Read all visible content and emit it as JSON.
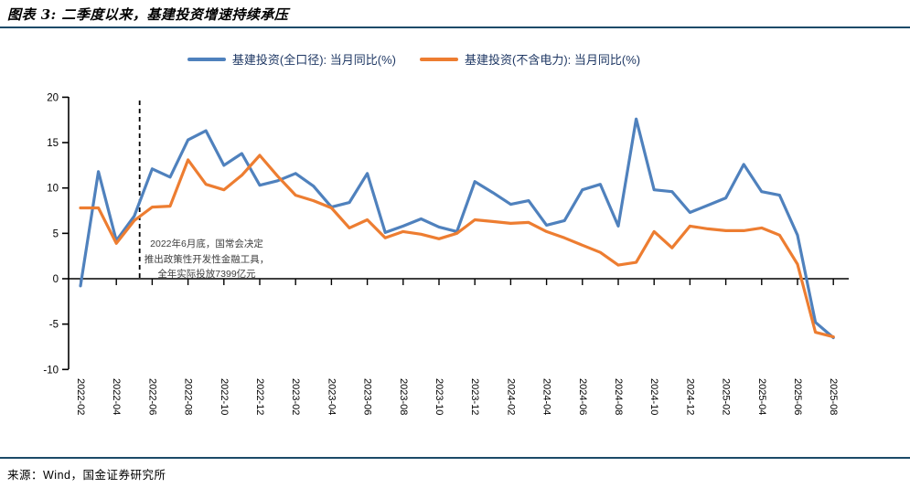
{
  "header": {
    "title": "图表 3: 二季度以来，基建投资增速持续承压"
  },
  "legend": [
    {
      "label": "基建投资(全口径): 当月同比(%)",
      "color": "#4F81BD"
    },
    {
      "label": "基建投资(不含电力): 当月同比(%)",
      "color": "#ED7D31"
    }
  ],
  "chart_data": {
    "type": "line",
    "title": "",
    "xlabel": "",
    "ylabel": "",
    "ylim": [
      -10,
      20
    ],
    "yticks": [
      20,
      15,
      10,
      5,
      0,
      -5,
      -10
    ],
    "grid": false,
    "legend_position": "top",
    "categories": [
      "2022-02",
      "2022-03",
      "2022-04",
      "2022-05",
      "2022-06",
      "2022-07",
      "2022-08",
      "2022-09",
      "2022-10",
      "2022-11",
      "2022-12",
      "2023-01",
      "2023-02",
      "2023-03",
      "2023-04",
      "2023-05",
      "2023-06",
      "2023-07",
      "2023-08",
      "2023-09",
      "2023-10",
      "2023-11",
      "2023-12",
      "2024-01",
      "2024-02",
      "2024-03",
      "2024-04",
      "2024-05",
      "2024-06",
      "2024-07",
      "2024-08",
      "2024-09",
      "2024-10",
      "2024-11",
      "2024-12",
      "2025-01",
      "2025-02",
      "2025-03",
      "2025-04",
      "2025-05",
      "2025-06",
      "2025-07",
      "2025-08"
    ],
    "xtick_labels": [
      "2022-02",
      "2022-04",
      "2022-06",
      "2022-08",
      "2022-10",
      "2022-12",
      "2023-02",
      "2023-04",
      "2023-06",
      "2023-08",
      "2023-10",
      "2023-12",
      "2024-02",
      "2024-04",
      "2024-06",
      "2024-08",
      "2024-10",
      "2024-12",
      "2025-02",
      "2025-04",
      "2025-06",
      "2025-08"
    ],
    "series": [
      {
        "name": "基建投资(全口径): 当月同比(%)",
        "color": "#4F81BD",
        "values": [
          -0.8,
          11.8,
          4.2,
          6.9,
          12.1,
          11.2,
          15.3,
          16.3,
          12.5,
          13.8,
          10.3,
          10.8,
          11.6,
          10.2,
          7.9,
          8.4,
          11.6,
          5.1,
          5.8,
          6.6,
          5.7,
          5.2,
          10.7,
          9.5,
          8.2,
          8.6,
          5.9,
          6.4,
          9.8,
          10.4,
          5.8,
          17.6,
          9.8,
          9.6,
          7.3,
          8.1,
          8.9,
          12.6,
          9.6,
          9.2,
          4.8,
          -4.8,
          -6.5
        ]
      },
      {
        "name": "基建投资(不含电力): 当月同比(%)",
        "color": "#ED7D31",
        "values": [
          7.8,
          7.8,
          3.9,
          6.4,
          7.9,
          8.0,
          13.1,
          10.4,
          9.8,
          11.4,
          13.6,
          11.3,
          9.2,
          8.6,
          7.8,
          5.6,
          6.5,
          4.5,
          5.2,
          4.9,
          4.4,
          5.0,
          6.5,
          6.3,
          6.1,
          6.2,
          5.2,
          4.5,
          3.7,
          2.9,
          1.5,
          1.8,
          5.2,
          3.4,
          5.8,
          5.5,
          5.3,
          5.3,
          5.6,
          4.8,
          1.6,
          -5.9,
          -6.4
        ]
      }
    ],
    "annotation": {
      "lines": [
        "2022年6月底，国常会决定",
        "推出政策性开发性金融工具，",
        "全年实际投放7399亿元"
      ],
      "dashed_line_month_index": 3.3
    }
  },
  "footer": {
    "source": "来源：Wind，国金证券研究所"
  },
  "colors": {
    "rule": "#1B4A68",
    "axis": "#000000",
    "tick_text": "#000000",
    "annotation_text": "#404040",
    "legend_text": "#1F3864"
  }
}
